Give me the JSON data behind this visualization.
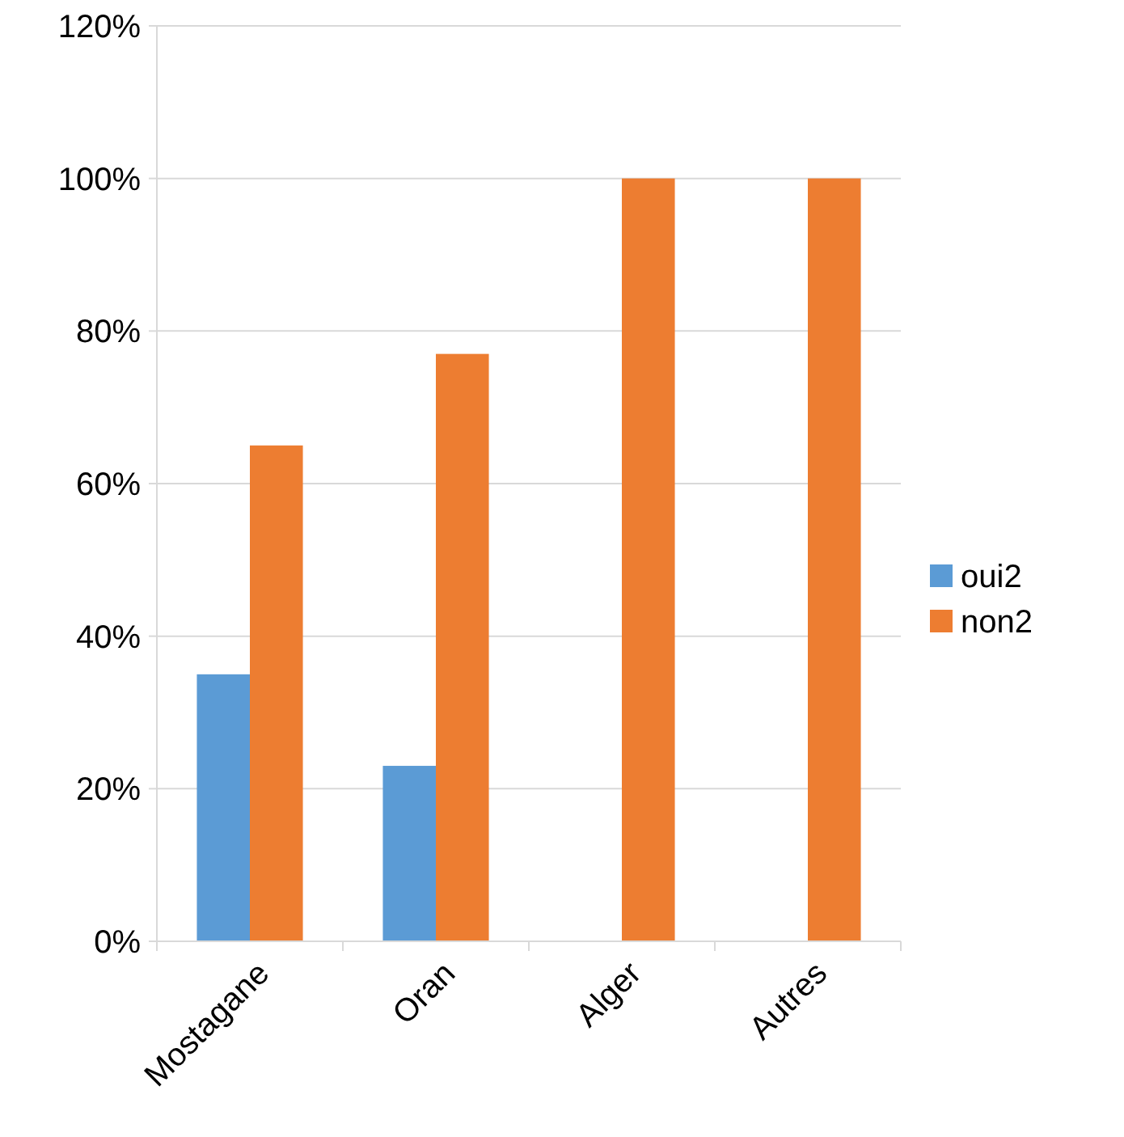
{
  "chart_data": {
    "type": "bar",
    "categories": [
      "Mostagane",
      "Oran",
      "Alger",
      "Autres"
    ],
    "series": [
      {
        "name": "oui2",
        "color": "#5b9bd5",
        "values": [
          35,
          23,
          0,
          0
        ]
      },
      {
        "name": "non2",
        "color": "#ed7d31",
        "values": [
          65,
          77,
          100,
          100
        ]
      }
    ],
    "ylim": [
      0,
      120
    ],
    "yticks": [
      {
        "value": 0,
        "label": "0%"
      },
      {
        "value": 20,
        "label": "20%"
      },
      {
        "value": 40,
        "label": "40%"
      },
      {
        "value": 60,
        "label": "60%"
      },
      {
        "value": 80,
        "label": "80%"
      },
      {
        "value": 100,
        "label": "100%"
      },
      {
        "value": 120,
        "label": "120%"
      }
    ],
    "grid": "y",
    "legend": "right"
  }
}
